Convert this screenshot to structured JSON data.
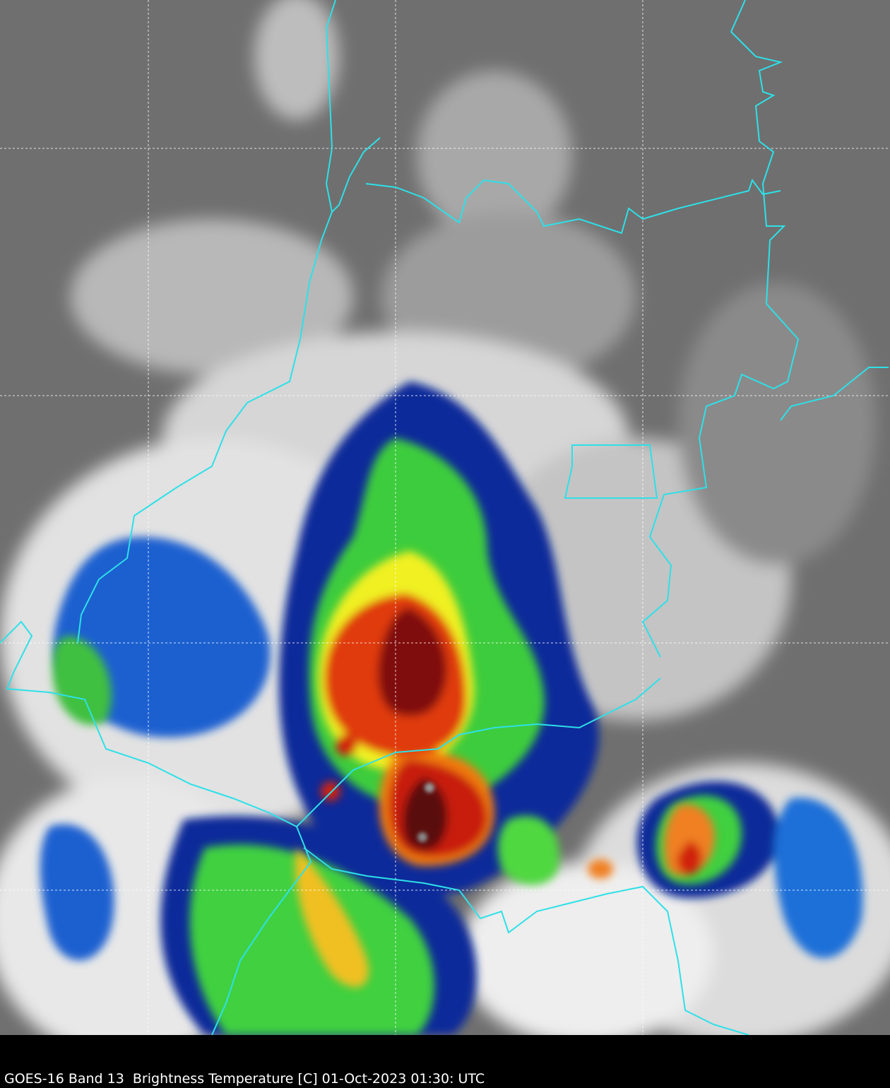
{
  "caption": "GOES-16 Band 13  Brightness Temperature [C] 01-Oct-2023 01:30: UTC"
}
